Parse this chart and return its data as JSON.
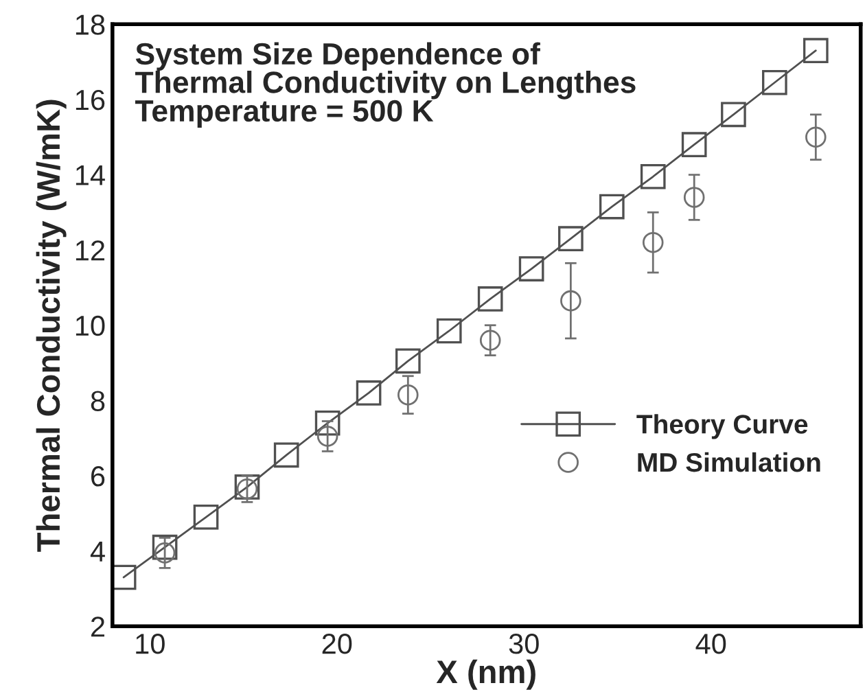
{
  "chart_data": {
    "type": "line",
    "xlabel": "X (nm)",
    "ylabel": "Thermal Conductivity (W/mK)",
    "annotations": [
      "System Size Dependence of\nThermal Conductivity on Lengthes\nTemperature = 500 K"
    ],
    "xlim": [
      8,
      48
    ],
    "ylim": [
      2,
      18
    ],
    "xticks": [
      10,
      20,
      30,
      40
    ],
    "yticks": [
      2,
      4,
      6,
      8,
      10,
      12,
      14,
      16,
      18
    ],
    "grid": false,
    "legend": "right",
    "series": [
      {
        "name": "Theory Curve",
        "marker": "square",
        "color": "#505050",
        "x": [
          8.6,
          10.8,
          13.0,
          15.2,
          17.3,
          19.5,
          21.7,
          23.8,
          26.0,
          28.2,
          30.4,
          32.5,
          34.7,
          36.9,
          39.1,
          41.2,
          43.4,
          45.6
        ],
        "values": [
          3.3,
          4.1,
          4.9,
          5.7,
          6.55,
          7.4,
          8.2,
          9.05,
          9.85,
          10.7,
          11.5,
          12.3,
          13.15,
          13.95,
          14.8,
          15.6,
          16.45,
          17.3
        ]
      },
      {
        "name": "MD Simulation",
        "type": "scatter",
        "marker": "circle",
        "color": "#707070",
        "x": [
          10.8,
          15.2,
          19.5,
          23.8,
          28.2,
          32.5,
          36.9,
          39.1,
          45.6
        ],
        "values": [
          3.95,
          5.65,
          7.05,
          8.15,
          9.6,
          10.65,
          12.2,
          13.4,
          15.0
        ],
        "errors": [
          0.4,
          0.35,
          0.4,
          0.5,
          0.4,
          1.0,
          0.8,
          0.6,
          0.6
        ]
      }
    ]
  }
}
